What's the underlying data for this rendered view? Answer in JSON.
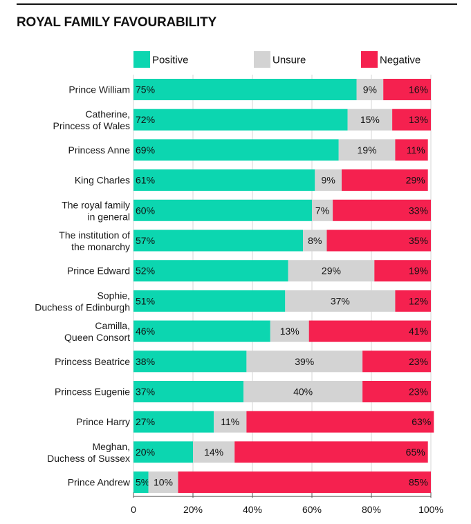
{
  "chart_data": {
    "type": "bar",
    "orientation": "horizontal-stacked",
    "title": "ROYAL FAMILY FAVOURABILITY",
    "xlabel": "",
    "ylabel": "",
    "xlim": [
      0,
      100
    ],
    "xticks": [
      "0",
      "20%",
      "40%",
      "60%",
      "80%",
      "100%"
    ],
    "legend_position": "top",
    "colors": {
      "Positive": "#0cd6b0",
      "Unsure": "#d3d3d3",
      "Negative": "#f5214f"
    },
    "categories": [
      [
        "Prince William"
      ],
      [
        "Catherine,",
        "Princess of Wales"
      ],
      [
        "Princess Anne"
      ],
      [
        "King Charles"
      ],
      [
        "The royal family",
        "in general"
      ],
      [
        "The institution of",
        "the monarchy"
      ],
      [
        "Prince Edward"
      ],
      [
        "Sophie,",
        "Duchess of Edinburgh"
      ],
      [
        "Camilla,",
        "Queen Consort"
      ],
      [
        "Princess Beatrice"
      ],
      [
        "Princess Eugenie"
      ],
      [
        "Prince Harry"
      ],
      [
        "Meghan,",
        "Duchess of Sussex"
      ],
      [
        "Prince Andrew"
      ]
    ],
    "series": [
      {
        "name": "Positive",
        "values": [
          75,
          72,
          69,
          61,
          60,
          57,
          52,
          51,
          46,
          38,
          37,
          27,
          20,
          5
        ]
      },
      {
        "name": "Unsure",
        "values": [
          9,
          15,
          19,
          9,
          7,
          8,
          29,
          37,
          13,
          39,
          40,
          11,
          14,
          10
        ]
      },
      {
        "name": "Negative",
        "values": [
          16,
          13,
          11,
          29,
          33,
          35,
          19,
          12,
          41,
          23,
          23,
          63,
          65,
          85
        ]
      }
    ]
  }
}
